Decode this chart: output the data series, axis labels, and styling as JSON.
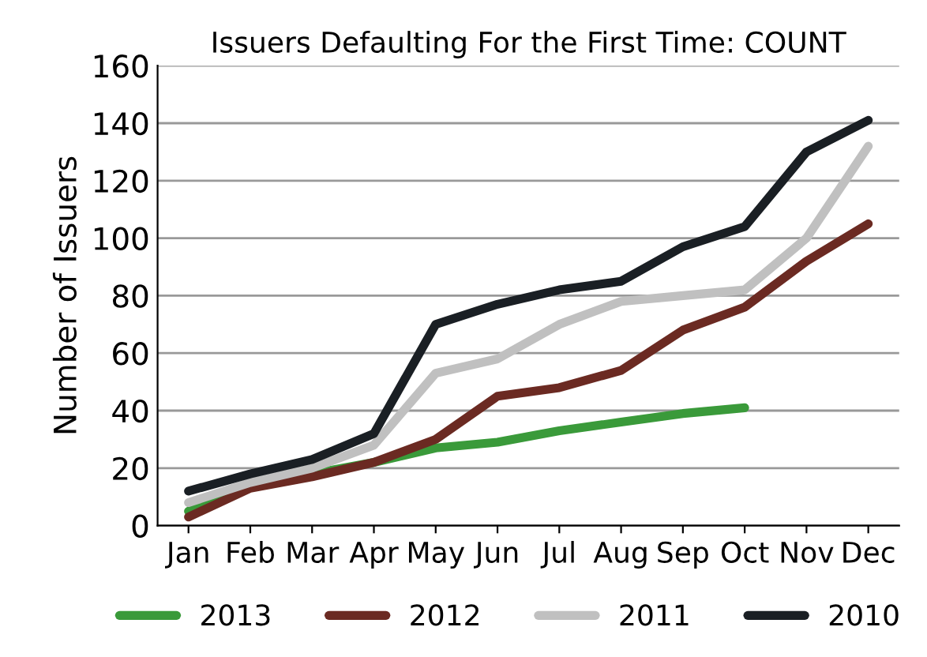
{
  "chart_data": {
    "type": "line",
    "title": "Issuers Defaulting For the First Time: COUNT",
    "ylabel": "Number of Issuers",
    "categories": [
      "Jan",
      "Feb",
      "Mar",
      "Apr",
      "May",
      "Jun",
      "Jul",
      "Aug",
      "Sep",
      "Oct",
      "Nov",
      "Dec"
    ],
    "series": [
      {
        "name": "2013",
        "color": "#3a9a3a",
        "values": [
          5,
          14,
          18,
          22,
          27,
          29,
          33,
          36,
          39,
          41,
          null,
          null
        ]
      },
      {
        "name": "2012",
        "color": "#6b2a22",
        "values": [
          3,
          13,
          17,
          22,
          30,
          45,
          48,
          54,
          68,
          76,
          92,
          105
        ]
      },
      {
        "name": "2011",
        "color": "#c0c0c0",
        "values": [
          8,
          15,
          20,
          28,
          53,
          58,
          70,
          78,
          80,
          82,
          100,
          132
        ]
      },
      {
        "name": "2010",
        "color": "#1a1f24",
        "values": [
          12,
          18,
          23,
          32,
          70,
          77,
          82,
          85,
          97,
          104,
          130,
          141
        ]
      }
    ],
    "ylim": [
      0,
      160
    ],
    "yticks": [
      0,
      20,
      40,
      60,
      80,
      100,
      120,
      140,
      160
    ],
    "grid": "y",
    "legend": "bottom",
    "marker": "none",
    "line_style": "solid"
  }
}
